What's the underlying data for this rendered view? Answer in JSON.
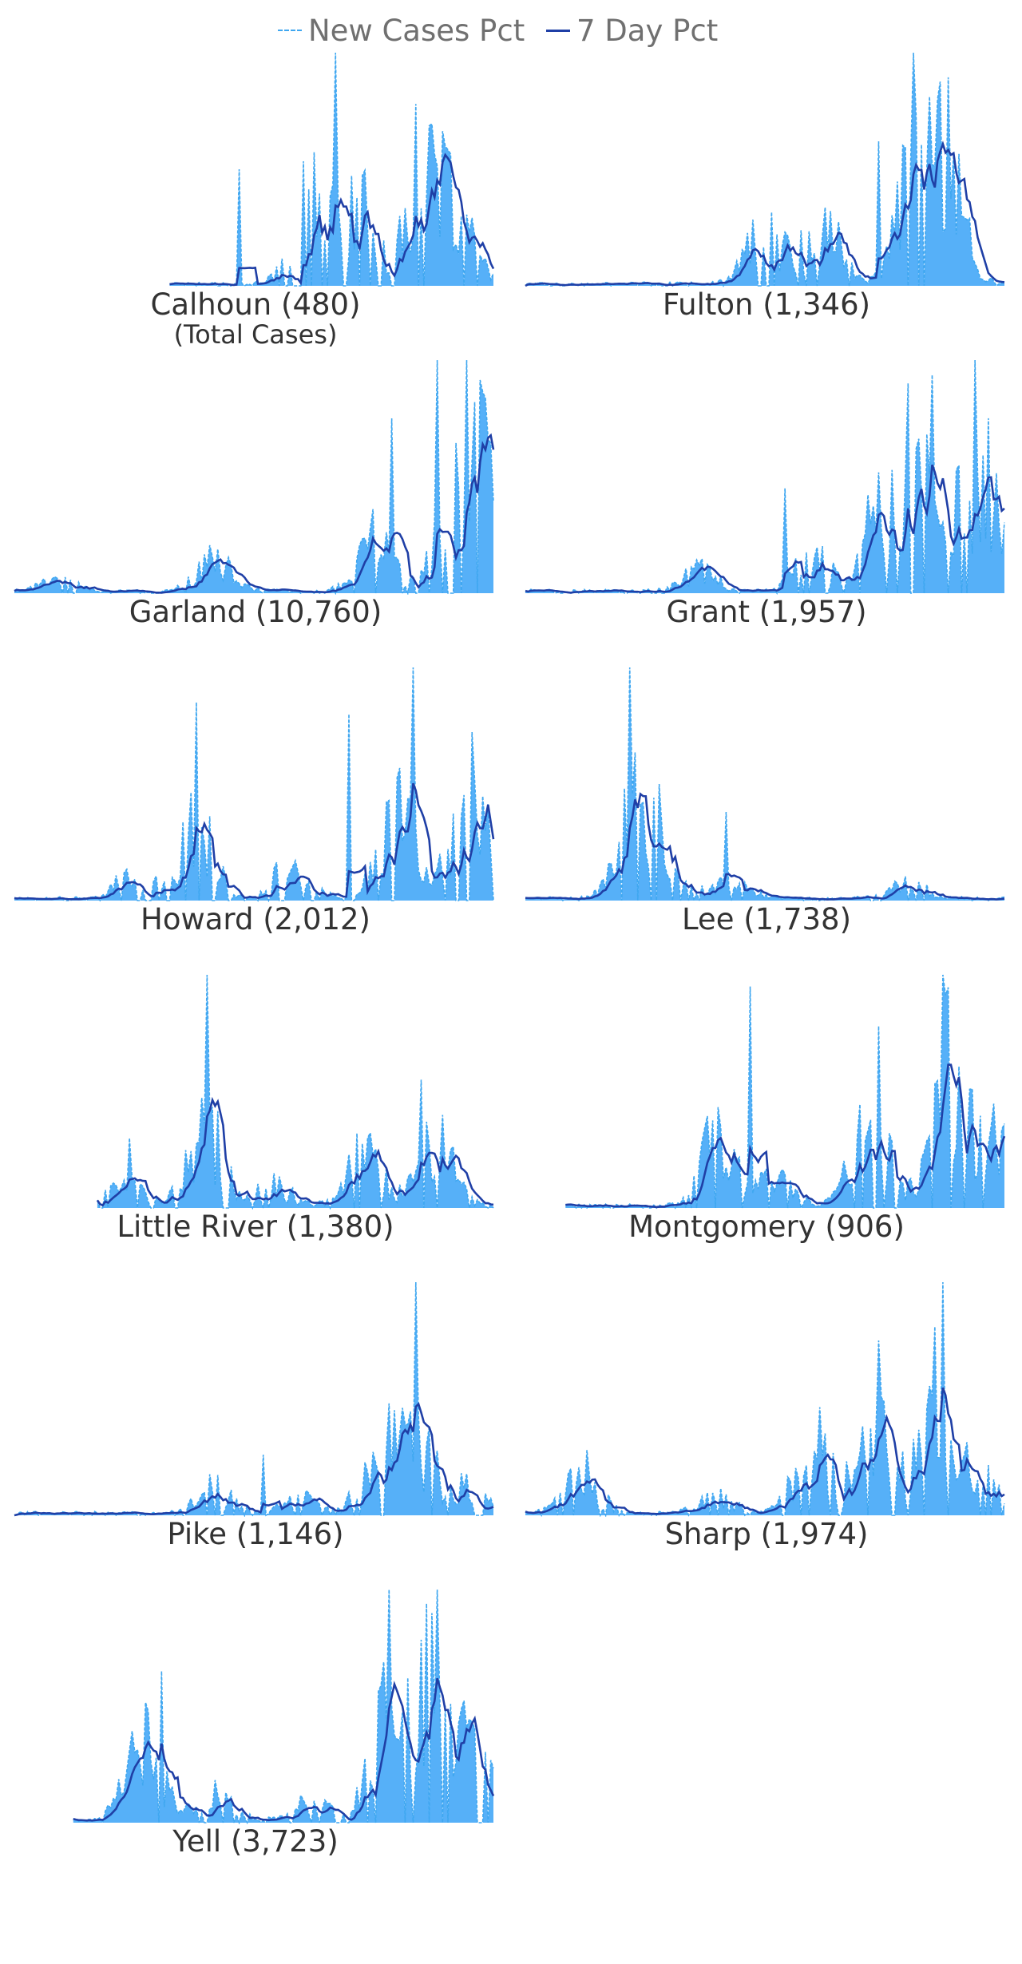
{
  "colors": {
    "bars": "#56b0f8",
    "new_line": "#3fa7f0",
    "seven_line": "#1f3fa6"
  },
  "legend": {
    "new_cases": "New Cases Pct",
    "seven_day": "7 Day Pct"
  },
  "chart_data": {
    "type": "small-multiples",
    "note_series": [
      "New Cases Pct",
      "7 Day Pct"
    ],
    "panels": [
      {
        "name": "Calhoun (480)",
        "subtitle": "(Total Cases)",
        "start": 0.32,
        "peaks": [
          [
            0.62,
            0.38
          ],
          [
            0.72,
            0.3
          ],
          [
            0.85,
            0.34
          ],
          [
            0.92,
            0.3
          ]
        ],
        "spikes": [
          [
            0.47,
            0.5
          ],
          [
            0.67,
            1.0
          ],
          [
            0.84,
            0.78
          ]
        ]
      },
      {
        "name": "Fulton (1,346)",
        "start": 0.0,
        "peaks": [
          [
            0.5,
            0.22
          ],
          [
            0.62,
            0.24
          ],
          [
            0.82,
            0.58
          ],
          [
            0.88,
            0.4
          ]
        ],
        "spikes": [
          [
            0.74,
            0.62
          ],
          [
            0.81,
            1.0
          ],
          [
            0.86,
            0.8
          ]
        ]
      },
      {
        "name": "Garland (10,760)",
        "start": 0.0,
        "peaks": [
          [
            0.09,
            0.04
          ],
          [
            0.42,
            0.12
          ],
          [
            0.75,
            0.22
          ],
          [
            0.92,
            0.55
          ],
          [
            0.98,
            0.38
          ]
        ],
        "spikes": [
          [
            0.88,
            1.0
          ],
          [
            0.79,
            0.75
          ],
          [
            0.96,
            0.82
          ]
        ]
      },
      {
        "name": "Grant (1,957)",
        "start": 0.0,
        "peaks": [
          [
            0.36,
            0.08
          ],
          [
            0.6,
            0.14
          ],
          [
            0.75,
            0.4
          ],
          [
            0.85,
            0.6
          ],
          [
            0.96,
            0.46
          ]
        ],
        "spikes": [
          [
            0.8,
            0.9
          ],
          [
            0.94,
            1.0
          ],
          [
            0.54,
            0.45
          ]
        ]
      },
      {
        "name": "Howard (2,012)",
        "start": 0.0,
        "peaks": [
          [
            0.25,
            0.1
          ],
          [
            0.38,
            0.28
          ],
          [
            0.58,
            0.14
          ],
          [
            0.8,
            0.38
          ],
          [
            0.95,
            0.44
          ]
        ],
        "spikes": [
          [
            0.38,
            0.85
          ],
          [
            0.83,
            1.0
          ],
          [
            0.7,
            0.8
          ]
        ]
      },
      {
        "name": "Lee (1,738)",
        "start": 0.0,
        "peaks": [
          [
            0.23,
            0.36
          ],
          [
            0.3,
            0.1
          ],
          [
            0.43,
            0.06
          ],
          [
            0.8,
            0.06
          ]
        ],
        "spikes": [
          [
            0.22,
            1.0
          ],
          [
            0.28,
            0.5
          ],
          [
            0.42,
            0.38
          ]
        ]
      },
      {
        "name": "Little River (1,380)",
        "start": 0.17,
        "peaks": [
          [
            0.24,
            0.1
          ],
          [
            0.4,
            0.3
          ],
          [
            0.54,
            0.08
          ],
          [
            0.73,
            0.22
          ],
          [
            0.88,
            0.25
          ]
        ],
        "spikes": [
          [
            0.4,
            1.0
          ],
          [
            0.24,
            0.3
          ],
          [
            0.85,
            0.55
          ]
        ]
      },
      {
        "name": "Montgomery (906)",
        "start": 0.08,
        "peaks": [
          [
            0.4,
            0.28
          ],
          [
            0.52,
            0.1
          ],
          [
            0.72,
            0.4
          ],
          [
            0.88,
            0.55
          ],
          [
            0.98,
            0.28
          ]
        ],
        "spikes": [
          [
            0.87,
            1.0
          ],
          [
            0.47,
            0.95
          ],
          [
            0.74,
            0.78
          ]
        ]
      },
      {
        "name": "Pike (1,146)",
        "start": 0.0,
        "peaks": [
          [
            0.42,
            0.1
          ],
          [
            0.6,
            0.06
          ],
          [
            0.76,
            0.22
          ],
          [
            0.84,
            0.28
          ],
          [
            0.95,
            0.12
          ]
        ],
        "spikes": [
          [
            0.84,
            1.0
          ],
          [
            0.78,
            0.48
          ],
          [
            0.52,
            0.26
          ]
        ]
      },
      {
        "name": "Sharp (1,974)",
        "start": 0.0,
        "peaks": [
          [
            0.12,
            0.14
          ],
          [
            0.4,
            0.06
          ],
          [
            0.6,
            0.3
          ],
          [
            0.73,
            0.4
          ],
          [
            0.86,
            0.48
          ],
          [
            0.95,
            0.14
          ]
        ],
        "spikes": [
          [
            0.87,
            1.0
          ],
          [
            0.74,
            0.75
          ],
          [
            0.13,
            0.28
          ]
        ]
      },
      {
        "name": "Yell (3,723)",
        "start": 0.12,
        "peaks": [
          [
            0.27,
            0.36
          ],
          [
            0.42,
            0.1
          ],
          [
            0.62,
            0.08
          ],
          [
            0.78,
            0.48
          ],
          [
            0.88,
            0.58
          ],
          [
            0.97,
            0.26
          ]
        ],
        "spikes": [
          [
            0.78,
            1.0
          ],
          [
            0.86,
            0.94
          ],
          [
            0.31,
            0.65
          ]
        ]
      }
    ]
  }
}
